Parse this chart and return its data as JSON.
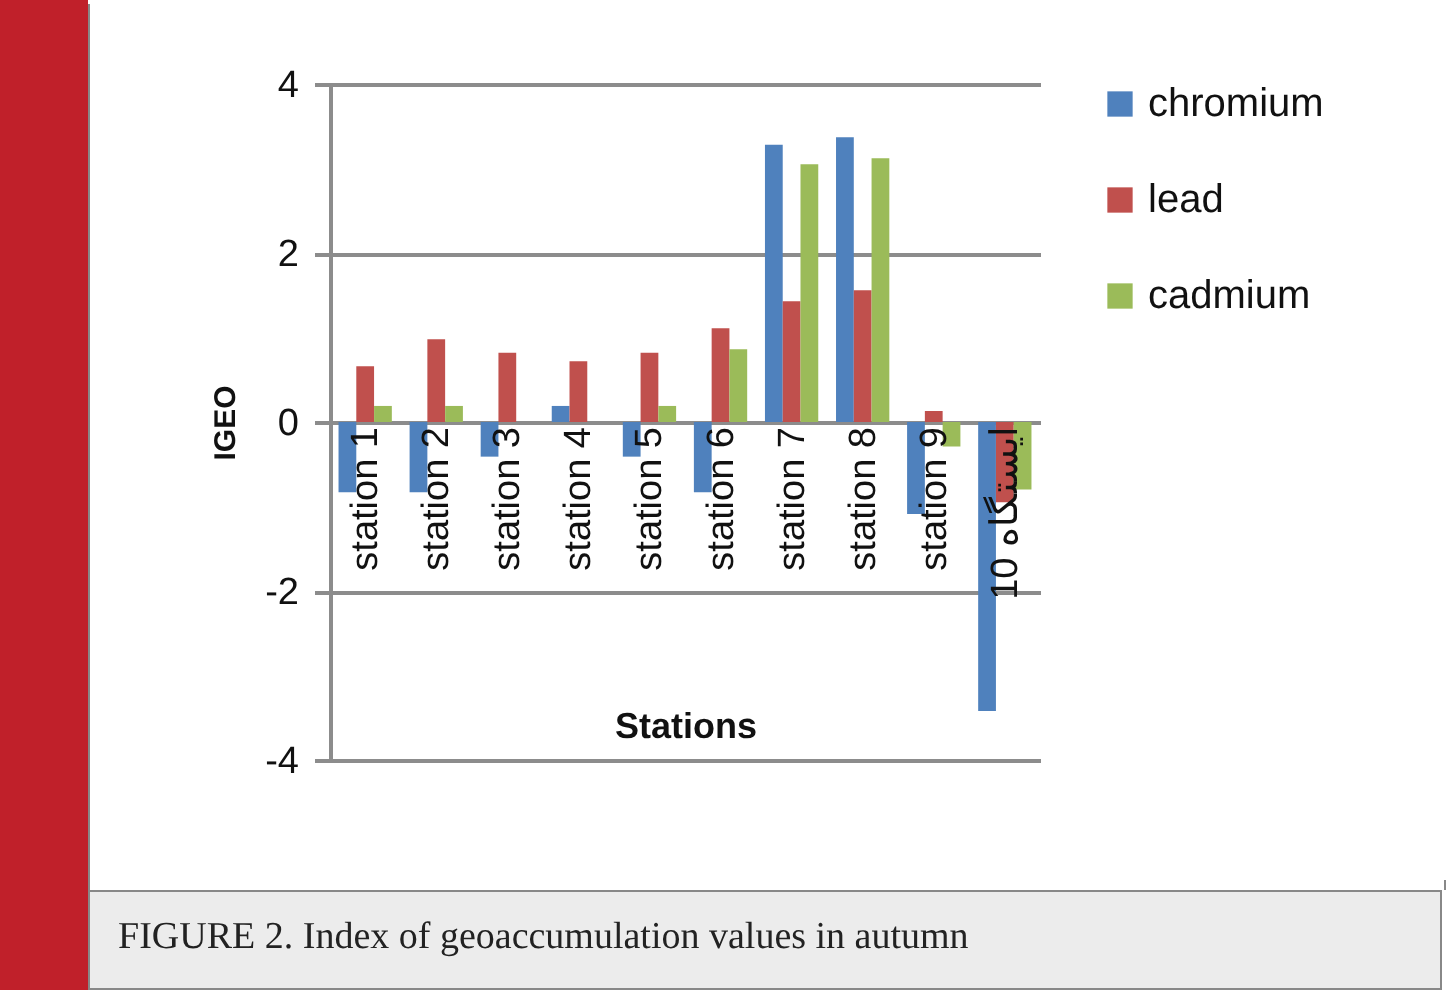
{
  "chart_data": {
    "type": "bar",
    "xlabel": "Stations",
    "ylabel": "IGEO",
    "categories": [
      "station 1",
      "station 2",
      "station 3",
      "station 4",
      "station 5",
      "station 6",
      "station 7",
      "station 8",
      "station 9",
      "ایستگاه 10"
    ],
    "series": [
      {
        "name": "chromium",
        "color": "#4f81bd",
        "values": [
          -0.83,
          -0.83,
          -0.41,
          0.19,
          -0.41,
          -0.83,
          3.28,
          3.37,
          -1.09,
          -3.42
        ]
      },
      {
        "name": "lead",
        "color": "#c0504d",
        "values": [
          0.66,
          0.98,
          0.82,
          0.72,
          0.82,
          1.11,
          1.43,
          1.56,
          0.13,
          -0.95
        ]
      },
      {
        "name": "cadmium",
        "color": "#9bbb59",
        "values": [
          0.19,
          0.19,
          0,
          0,
          0.19,
          0.86,
          3.05,
          3.12,
          -0.29,
          -0.8
        ]
      }
    ],
    "ylim": [
      -4,
      4
    ],
    "yticks": [
      -4,
      -2,
      0,
      2,
      4
    ],
    "grid": "y",
    "legend": "right",
    "annotations": [
      "FIGURE 2. Index of geoaccumulation values in autumn"
    ]
  }
}
